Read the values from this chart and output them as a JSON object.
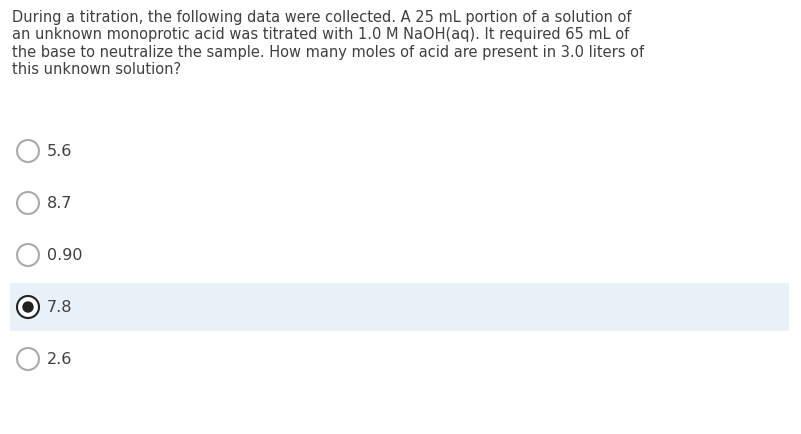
{
  "question_lines": [
    "During a titration, the following data were collected. A 25 mL portion of a solution of",
    "an unknown monoprotic acid was titrated with 1.0 M NaOH(aq). It required 65 mL of",
    "the base to neutralize the sample. How many moles of acid are present in 3.0 liters of",
    "this unknown solution?"
  ],
  "options": [
    "5.6",
    "8.7",
    "0.90",
    "7.8",
    "2.6"
  ],
  "selected_index": 3,
  "background_color": "#ffffff",
  "highlight_color": "#e8f1f8",
  "text_color": "#404040",
  "circle_edge_color": "#aaaaaa",
  "selected_fill_color": "#222222",
  "question_fontsize": 10.5,
  "option_fontsize": 11.5,
  "fig_width": 8.01,
  "fig_height": 4.35,
  "dpi": 100
}
